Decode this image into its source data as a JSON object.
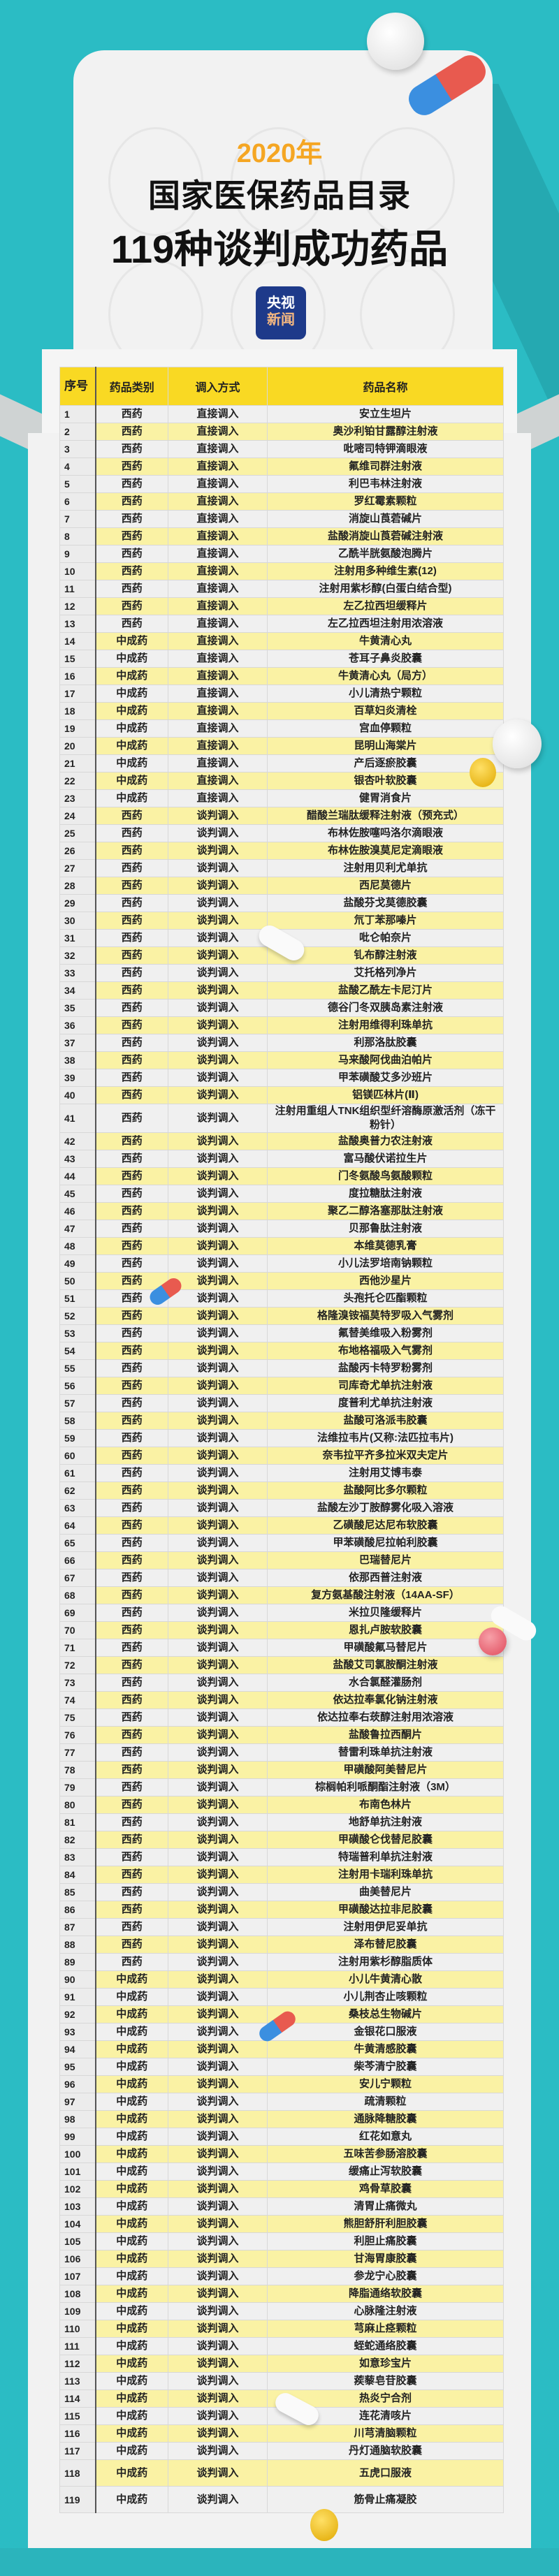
{
  "header": {
    "year": "2020年",
    "title": "国家医保药品目录",
    "subtitle": "119种谈判成功药品",
    "logo_line1": "央视",
    "logo_line2": "新闻"
  },
  "colors": {
    "background": "#2bbcc4",
    "header_row": "#f9d923",
    "even_row": "#faf2a4",
    "odd_row": "#f0f0f0",
    "year": "#f5a623"
  },
  "table": {
    "columns": [
      "序号",
      "药品类别",
      "调入方式",
      "药品名称"
    ],
    "rows": [
      [
        "1",
        "西药",
        "直接调入",
        "安立生坦片"
      ],
      [
        "2",
        "西药",
        "直接调入",
        "奥沙利铂甘露醇注射液"
      ],
      [
        "3",
        "西药",
        "直接调入",
        "吡嘧司特钾滴眼液"
      ],
      [
        "4",
        "西药",
        "直接调入",
        "氟维司群注射液"
      ],
      [
        "5",
        "西药",
        "直接调入",
        "利巴韦林注射液"
      ],
      [
        "6",
        "西药",
        "直接调入",
        "罗红霉素颗粒"
      ],
      [
        "7",
        "西药",
        "直接调入",
        "消旋山莨菪碱片"
      ],
      [
        "8",
        "西药",
        "直接调入",
        "盐酸消旋山莨菪碱注射液"
      ],
      [
        "9",
        "西药",
        "直接调入",
        "乙酰半胱氨酸泡腾片"
      ],
      [
        "10",
        "西药",
        "直接调入",
        "注射用多种维生素(12)"
      ],
      [
        "11",
        "西药",
        "直接调入",
        "注射用紫杉醇(白蛋白结合型)"
      ],
      [
        "12",
        "西药",
        "直接调入",
        "左乙拉西坦缓释片"
      ],
      [
        "13",
        "西药",
        "直接调入",
        "左乙拉西坦注射用浓溶液"
      ],
      [
        "14",
        "中成药",
        "直接调入",
        "牛黄清心丸"
      ],
      [
        "15",
        "中成药",
        "直接调入",
        "苍耳子鼻炎胶囊"
      ],
      [
        "16",
        "中成药",
        "直接调入",
        "牛黄清心丸（局方）"
      ],
      [
        "17",
        "中成药",
        "直接调入",
        "小儿清热宁颗粒"
      ],
      [
        "18",
        "中成药",
        "直接调入",
        "百草妇炎清栓"
      ],
      [
        "19",
        "中成药",
        "直接调入",
        "宫血停颗粒"
      ],
      [
        "20",
        "中成药",
        "直接调入",
        "昆明山海棠片"
      ],
      [
        "21",
        "中成药",
        "直接调入",
        "产后逐瘀胶囊"
      ],
      [
        "22",
        "中成药",
        "直接调入",
        "银杏叶软胶囊"
      ],
      [
        "23",
        "中成药",
        "直接调入",
        "健胃消食片"
      ],
      [
        "24",
        "西药",
        "谈判调入",
        "醋酸兰瑞肽缓释注射液（预充式）"
      ],
      [
        "25",
        "西药",
        "谈判调入",
        "布林佐胺噻吗洛尔滴眼液"
      ],
      [
        "26",
        "西药",
        "谈判调入",
        "布林佐胺溴莫尼定滴眼液"
      ],
      [
        "27",
        "西药",
        "谈判调入",
        "注射用贝利尤单抗"
      ],
      [
        "28",
        "西药",
        "谈判调入",
        "西尼莫德片"
      ],
      [
        "29",
        "西药",
        "谈判调入",
        "盐酸芬戈莫德胶囊"
      ],
      [
        "30",
        "西药",
        "谈判调入",
        "氘丁苯那嗪片"
      ],
      [
        "31",
        "西药",
        "谈判调入",
        "吡仑帕奈片"
      ],
      [
        "32",
        "西药",
        "谈判调入",
        "钆布醇注射液"
      ],
      [
        "33",
        "西药",
        "谈判调入",
        "艾托格列净片"
      ],
      [
        "34",
        "西药",
        "谈判调入",
        "盐酸乙酰左卡尼汀片"
      ],
      [
        "35",
        "西药",
        "谈判调入",
        "德谷门冬双胰岛素注射液"
      ],
      [
        "36",
        "西药",
        "谈判调入",
        "注射用维得利珠单抗"
      ],
      [
        "37",
        "西药",
        "谈判调入",
        "利那洛肽胶囊"
      ],
      [
        "38",
        "西药",
        "谈判调入",
        "马来酸阿伐曲泊帕片"
      ],
      [
        "39",
        "西药",
        "谈判调入",
        "甲苯磺酸艾多沙班片"
      ],
      [
        "40",
        "西药",
        "谈判调入",
        "铝镁匹林片(Ⅱ)"
      ],
      [
        "41",
        "西药",
        "谈判调入",
        "注射用重组人TNK组织型纤溶酶原激活剂（冻干粉针）"
      ],
      [
        "42",
        "西药",
        "谈判调入",
        "盐酸奥普力农注射液"
      ],
      [
        "43",
        "西药",
        "谈判调入",
        "富马酸伏诺拉生片"
      ],
      [
        "44",
        "西药",
        "谈判调入",
        "门冬氨酸鸟氨酸颗粒"
      ],
      [
        "45",
        "西药",
        "谈判调入",
        "度拉糖肽注射液"
      ],
      [
        "46",
        "西药",
        "谈判调入",
        "聚乙二醇洛塞那肽注射液"
      ],
      [
        "47",
        "西药",
        "谈判调入",
        "贝那鲁肽注射液"
      ],
      [
        "48",
        "西药",
        "谈判调入",
        "本维莫德乳膏"
      ],
      [
        "49",
        "西药",
        "谈判调入",
        "小儿法罗培南钠颗粒"
      ],
      [
        "50",
        "西药",
        "谈判调入",
        "西他沙星片"
      ],
      [
        "51",
        "西药",
        "谈判调入",
        "头孢托仑匹酯颗粒"
      ],
      [
        "52",
        "西药",
        "谈判调入",
        "格隆溴铵福莫特罗吸入气雾剂"
      ],
      [
        "53",
        "西药",
        "谈判调入",
        "氟替美维吸入粉雾剂"
      ],
      [
        "54",
        "西药",
        "谈判调入",
        "布地格福吸入气雾剂"
      ],
      [
        "55",
        "西药",
        "谈判调入",
        "盐酸丙卡特罗粉雾剂"
      ],
      [
        "56",
        "西药",
        "谈判调入",
        "司库奇尤单抗注射液"
      ],
      [
        "57",
        "西药",
        "谈判调入",
        "度普利尤单抗注射液"
      ],
      [
        "58",
        "西药",
        "谈判调入",
        "盐酸可洛派韦胶囊"
      ],
      [
        "59",
        "西药",
        "谈判调入",
        "法维拉韦片(又称:法匹拉韦片)"
      ],
      [
        "60",
        "西药",
        "谈判调入",
        "奈韦拉平齐多拉米双夫定片"
      ],
      [
        "61",
        "西药",
        "谈判调入",
        "注射用艾博韦泰"
      ],
      [
        "62",
        "西药",
        "谈判调入",
        "盐酸阿比多尔颗粒"
      ],
      [
        "63",
        "西药",
        "谈判调入",
        "盐酸左沙丁胺醇雾化吸入溶液"
      ],
      [
        "64",
        "西药",
        "谈判调入",
        "乙磺酸尼达尼布软胶囊"
      ],
      [
        "65",
        "西药",
        "谈判调入",
        "甲苯磺酸尼拉帕利胶囊"
      ],
      [
        "66",
        "西药",
        "谈判调入",
        "巴瑞替尼片"
      ],
      [
        "67",
        "西药",
        "谈判调入",
        "依那西普注射液"
      ],
      [
        "68",
        "西药",
        "谈判调入",
        "复方氨基酸注射液（14AA-SF）"
      ],
      [
        "69",
        "西药",
        "谈判调入",
        "米拉贝隆缓释片"
      ],
      [
        "70",
        "西药",
        "谈判调入",
        "恩扎卢胺软胶囊"
      ],
      [
        "71",
        "西药",
        "谈判调入",
        "甲磺酸氟马替尼片"
      ],
      [
        "72",
        "西药",
        "谈判调入",
        "盐酸艾司氯胺酮注射液"
      ],
      [
        "73",
        "西药",
        "谈判调入",
        "水合氯醛灌肠剂"
      ],
      [
        "74",
        "西药",
        "谈判调入",
        "依达拉奉氯化钠注射液"
      ],
      [
        "75",
        "西药",
        "谈判调入",
        "依达拉奉右莰醇注射用浓溶液"
      ],
      [
        "76",
        "西药",
        "谈判调入",
        "盐酸鲁拉西酮片"
      ],
      [
        "77",
        "西药",
        "谈判调入",
        "替雷利珠单抗注射液"
      ],
      [
        "78",
        "西药",
        "谈判调入",
        "甲磺酸阿美替尼片"
      ],
      [
        "79",
        "西药",
        "谈判调入",
        "棕榈帕利哌酮酯注射液（3M）"
      ],
      [
        "80",
        "西药",
        "谈判调入",
        "布南色林片"
      ],
      [
        "81",
        "西药",
        "谈判调入",
        "地舒单抗注射液"
      ],
      [
        "82",
        "西药",
        "谈判调入",
        "甲磺酸仑伐替尼胶囊"
      ],
      [
        "83",
        "西药",
        "谈判调入",
        "特瑞普利单抗注射液"
      ],
      [
        "84",
        "西药",
        "谈判调入",
        "注射用卡瑞利珠单抗"
      ],
      [
        "85",
        "西药",
        "谈判调入",
        "曲美替尼片"
      ],
      [
        "86",
        "西药",
        "谈判调入",
        "甲磺酸达拉非尼胶囊"
      ],
      [
        "87",
        "西药",
        "谈判调入",
        "注射用伊尼妥单抗"
      ],
      [
        "88",
        "西药",
        "谈判调入",
        "泽布替尼胶囊"
      ],
      [
        "89",
        "西药",
        "谈判调入",
        "注射用紫杉醇脂质体"
      ],
      [
        "90",
        "中成药",
        "谈判调入",
        "小儿牛黄清心散"
      ],
      [
        "91",
        "中成药",
        "谈判调入",
        "小儿荆杏止咳颗粒"
      ],
      [
        "92",
        "中成药",
        "谈判调入",
        "桑枝总生物碱片"
      ],
      [
        "93",
        "中成药",
        "谈判调入",
        "金银花口服液"
      ],
      [
        "94",
        "中成药",
        "谈判调入",
        "牛黄清感胶囊"
      ],
      [
        "95",
        "中成药",
        "谈判调入",
        "柴芩清宁胶囊"
      ],
      [
        "96",
        "中成药",
        "谈判调入",
        "安儿宁颗粒"
      ],
      [
        "97",
        "中成药",
        "谈判调入",
        "疏清颗粒"
      ],
      [
        "98",
        "中成药",
        "谈判调入",
        "通脉降糖胶囊"
      ],
      [
        "99",
        "中成药",
        "谈判调入",
        "红花如意丸"
      ],
      [
        "100",
        "中成药",
        "谈判调入",
        "五味苦参肠溶胶囊"
      ],
      [
        "101",
        "中成药",
        "谈判调入",
        "缓痛止泻软胶囊"
      ],
      [
        "102",
        "中成药",
        "谈判调入",
        "鸡骨草胶囊"
      ],
      [
        "103",
        "中成药",
        "谈判调入",
        "清胃止痛微丸"
      ],
      [
        "104",
        "中成药",
        "谈判调入",
        "熊胆舒肝利胆胶囊"
      ],
      [
        "105",
        "中成药",
        "谈判调入",
        "利胆止痛胶囊"
      ],
      [
        "106",
        "中成药",
        "谈判调入",
        "甘海胃康胶囊"
      ],
      [
        "107",
        "中成药",
        "谈判调入",
        "参龙宁心胶囊"
      ],
      [
        "108",
        "中成药",
        "谈判调入",
        "降脂通络软胶囊"
      ],
      [
        "109",
        "中成药",
        "谈判调入",
        "心脉隆注射液"
      ],
      [
        "110",
        "中成药",
        "谈判调入",
        "芎麻止痉颗粒"
      ],
      [
        "111",
        "中成药",
        "谈判调入",
        "蛭蛇通络胶囊"
      ],
      [
        "112",
        "中成药",
        "谈判调入",
        "如意珍宝片"
      ],
      [
        "113",
        "中成药",
        "谈判调入",
        "蒺藜皂苷胶囊"
      ],
      [
        "114",
        "中成药",
        "谈判调入",
        "热炎宁合剂"
      ],
      [
        "115",
        "中成药",
        "谈判调入",
        "连花清咳片"
      ],
      [
        "116",
        "中成药",
        "谈判调入",
        "川芎清脑颗粒"
      ],
      [
        "117",
        "中成药",
        "谈判调入",
        "丹灯通脑软胶囊"
      ],
      [
        "118",
        "中成药",
        "谈判调入",
        "五虎口服液"
      ],
      [
        "119",
        "中成药",
        "谈判调入",
        "筋骨止痛凝胶"
      ]
    ]
  }
}
